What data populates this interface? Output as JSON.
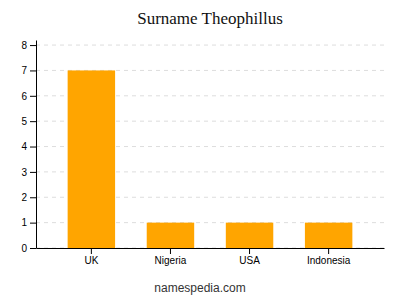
{
  "chart_data": {
    "type": "bar",
    "title": "Surname Theophillus",
    "categories": [
      "UK",
      "Nigeria",
      "USA",
      "Indonesia"
    ],
    "values": [
      7,
      1,
      1,
      1
    ],
    "color": "#FFA500",
    "ylim": [
      0,
      8.2
    ],
    "yticks": [
      0,
      1,
      2,
      3,
      4,
      5,
      6,
      7,
      8
    ],
    "grid": true,
    "annotations": [
      "namespedia.com"
    ]
  }
}
